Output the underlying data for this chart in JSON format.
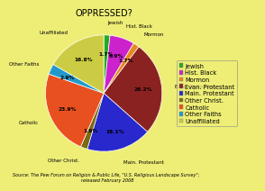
{
  "title": "OPPRESSED?",
  "labels": [
    "Jewish",
    "Hist. Black",
    "Mormon",
    "Evan. Protestant",
    "Main. Protestant",
    "Other Christ.",
    "Catholic",
    "Other Faiths",
    "Unaffiliated"
  ],
  "values": [
    1.7,
    6.9,
    1.7,
    26.3,
    18.1,
    1.9,
    23.9,
    2.9,
    16.8
  ],
  "colors": [
    "#22aa22",
    "#cc22cc",
    "#e88820",
    "#8b2222",
    "#2828cc",
    "#7a6a10",
    "#e85020",
    "#2299cc",
    "#cccc44"
  ],
  "bg_color": "#eeee77",
  "source_text": "Source: The Pew Forum on Religion & Public Life, \"U.S. Religious Landscape Survey\";\n  released February 2008",
  "startangle": 90,
  "legend_fontsize": 4.8,
  "title_fontsize": 7
}
